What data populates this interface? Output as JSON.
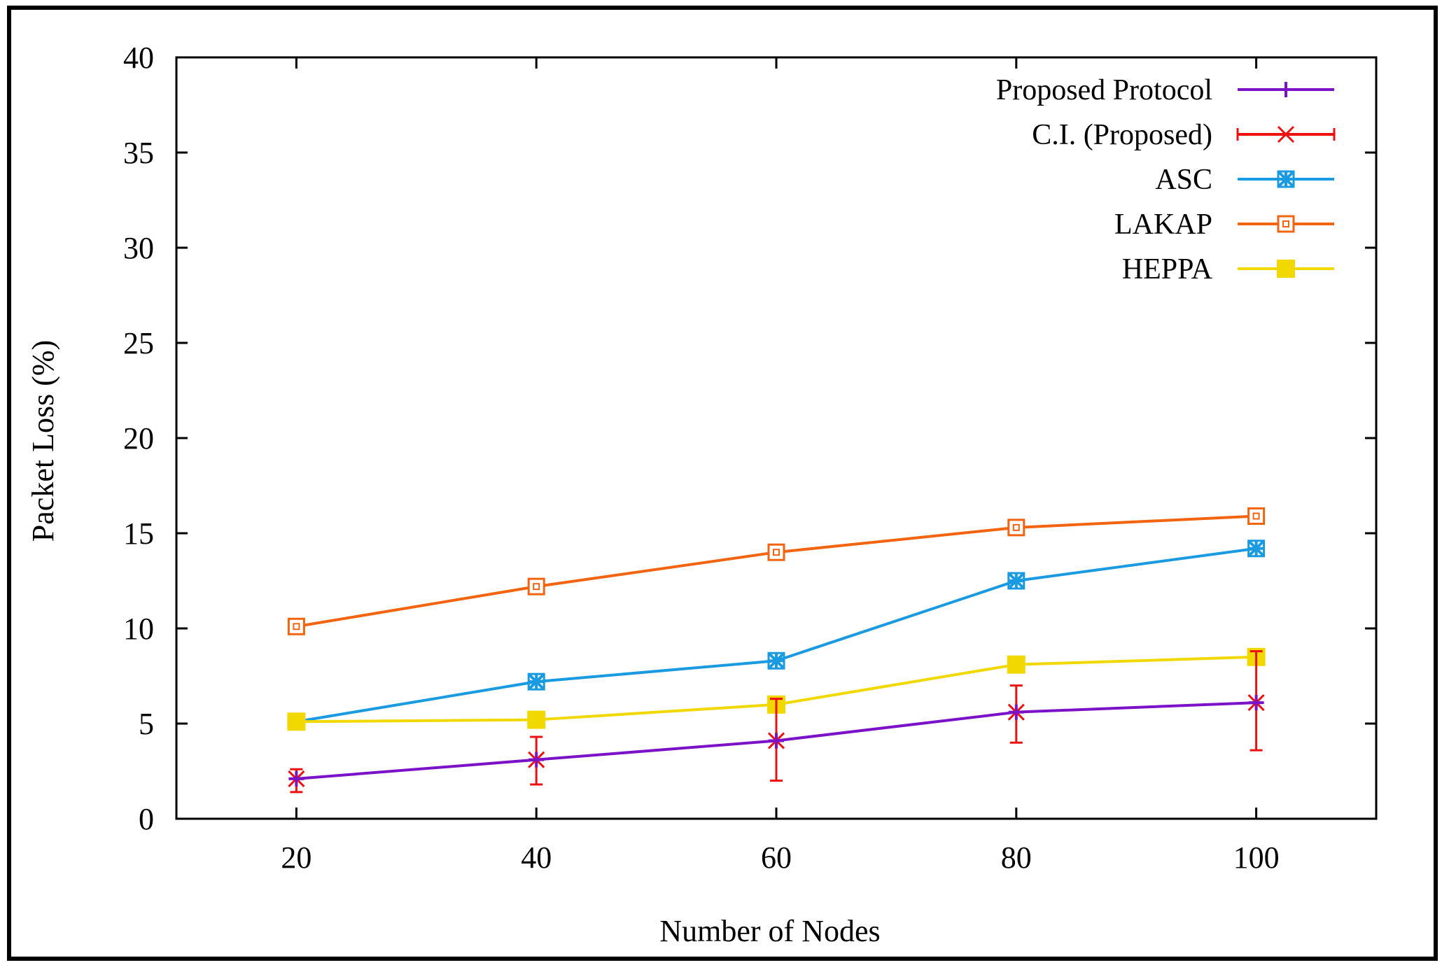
{
  "chart_data": {
    "type": "line",
    "xlabel": "Number of Nodes",
    "ylabel": "Packet Loss (%)",
    "x": [
      20,
      40,
      60,
      80,
      100
    ],
    "xticks": [
      "20",
      "40",
      "60",
      "80",
      "100"
    ],
    "yticks": [
      "0",
      "5",
      "10",
      "15",
      "20",
      "25",
      "30",
      "35",
      "40"
    ],
    "xlim": [
      10,
      110
    ],
    "ylim": [
      0,
      40
    ],
    "legend_position": "top-right",
    "series": [
      {
        "name": "Proposed Protocol",
        "color": "#7b12c8",
        "marker": "plus",
        "values": [
          2.1,
          3.1,
          4.1,
          5.6,
          6.1
        ]
      },
      {
        "name": "C.I. (Proposed)",
        "color": "#ee1111",
        "marker": "cross-errorbar",
        "values": [
          2.1,
          3.1,
          4.1,
          5.6,
          6.1
        ],
        "lower": [
          1.4,
          1.8,
          2.0,
          4.0,
          3.6
        ],
        "upper": [
          2.6,
          4.3,
          6.3,
          7.0,
          8.8
        ]
      },
      {
        "name": "ASC",
        "color": "#1a9ae0",
        "marker": "asterisk",
        "values": [
          5.1,
          7.2,
          8.3,
          12.5,
          14.2
        ]
      },
      {
        "name": "LAKAP",
        "color": "#f26410",
        "marker": "open-square",
        "values": [
          10.1,
          12.2,
          14.0,
          15.3,
          15.9
        ]
      },
      {
        "name": "HEPPA",
        "color": "#f0d800",
        "marker": "filled-square",
        "values": [
          5.1,
          5.2,
          6.0,
          8.1,
          8.5
        ]
      }
    ]
  }
}
